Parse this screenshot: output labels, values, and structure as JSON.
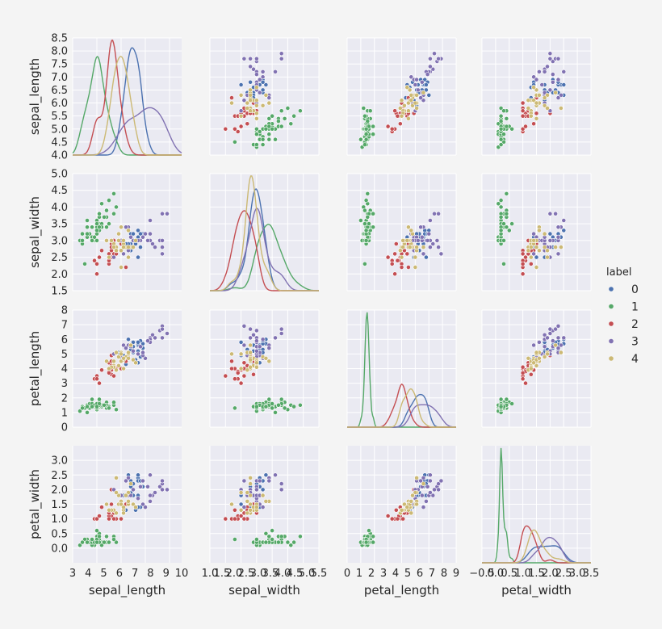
{
  "chart_data": {
    "type": "scatter",
    "variables": [
      "sepal_length",
      "sepal_width",
      "petal_length",
      "petal_width"
    ],
    "axis_ranges": {
      "sepal_length": [
        4.0,
        8.5
      ],
      "sepal_width": [
        1.5,
        5.0
      ],
      "petal_length": [
        0,
        8
      ],
      "petal_width": [
        -0.5,
        3.5
      ]
    },
    "row_ticks": {
      "sepal_length": [
        "4.0",
        "4.5",
        "5.0",
        "5.5",
        "6.0",
        "6.5",
        "7.0",
        "7.5",
        "8.0",
        "8.5"
      ],
      "sepal_width": [
        "1.5",
        "2.0",
        "2.5",
        "3.0",
        "3.5",
        "4.0",
        "4.5",
        "5.0"
      ],
      "petal_length": [
        "0",
        "1",
        "2",
        "3",
        "4",
        "5",
        "6",
        "7",
        "8"
      ],
      "petal_width": [
        "0.0",
        "0.5",
        "1.0",
        "1.5",
        "2.0",
        "2.5",
        "3.0"
      ]
    },
    "x_axes": [
      {
        "label": "sepal_length",
        "range": [
          3,
          10
        ],
        "ticks": [
          "3",
          "4",
          "5",
          "6",
          "7",
          "8",
          "9",
          "10"
        ]
      },
      {
        "label": "sepal_width",
        "range": [
          1.0,
          5.5
        ],
        "ticks": [
          "1.0",
          "1.5",
          "2.0",
          "2.5",
          "3.0",
          "3.5",
          "4.0",
          "4.5",
          "5.0",
          "5.5"
        ]
      },
      {
        "label": "petal_length",
        "range": [
          0,
          9
        ],
        "ticks": [
          "0",
          "1",
          "2",
          "3",
          "4",
          "5",
          "6",
          "7",
          "8",
          "9"
        ]
      },
      {
        "label": "petal_width",
        "range": [
          -0.5,
          3.5
        ],
        "ticks": [
          "−0.5",
          "0.0",
          "0.5",
          "1.0",
          "1.5",
          "2.0",
          "2.5",
          "3.0",
          "3.5"
        ]
      }
    ],
    "legend": {
      "title": "label",
      "entries": [
        "0",
        "1",
        "2",
        "3",
        "4"
      ],
      "position": "right"
    },
    "diagonal": "kde",
    "grid": true,
    "colors": [
      "#4c72b0",
      "#55a868",
      "#c44e52",
      "#8172b2",
      "#ccb974"
    ],
    "series": [
      {
        "name": "0",
        "points": [
          [
            6.1,
            2.8,
            4.7,
            1.2
          ],
          [
            6.3,
            2.5,
            4.9,
            1.5
          ],
          [
            6.4,
            2.9,
            5.2,
            1.8
          ],
          [
            6.5,
            3.0,
            5.5,
            1.8
          ],
          [
            6.7,
            3.1,
            5.6,
            2.4
          ],
          [
            6.9,
            3.1,
            5.4,
            2.1
          ],
          [
            6.3,
            2.8,
            5.1,
            1.5
          ],
          [
            6.4,
            3.2,
            5.3,
            2.3
          ],
          [
            6.2,
            3.4,
            5.4,
            2.3
          ],
          [
            6.7,
            3.0,
            5.2,
            2.3
          ],
          [
            6.5,
            2.8,
            4.6,
            1.5
          ],
          [
            6.6,
            2.9,
            4.6,
            1.3
          ],
          [
            6.8,
            2.8,
            4.8,
            1.4
          ],
          [
            6.7,
            3.3,
            5.7,
            2.5
          ],
          [
            6.0,
            2.2,
            5.0,
            1.5
          ],
          [
            6.3,
            3.3,
            6.0,
            2.5
          ],
          [
            6.4,
            2.7,
            5.3,
            1.9
          ],
          [
            6.1,
            3.0,
            4.9,
            1.8
          ],
          [
            6.5,
            3.2,
            5.1,
            2.0
          ],
          [
            7.1,
            3.0,
            5.9,
            2.1
          ],
          [
            6.9,
            3.2,
            5.7,
            2.3
          ],
          [
            6.8,
            3.2,
            5.9,
            2.3
          ],
          [
            6.7,
            3.1,
            4.4,
            1.4
          ],
          [
            6.6,
            3.0,
            4.4,
            1.4
          ],
          [
            6.3,
            2.9,
            5.6,
            1.8
          ],
          [
            5.9,
            3.0,
            5.1,
            1.8
          ],
          [
            6.2,
            2.9,
            4.3,
            1.3
          ],
          [
            6.4,
            2.8,
            5.6,
            2.1
          ],
          [
            6.7,
            2.5,
            5.8,
            1.8
          ],
          [
            6.5,
            3.0,
            5.8,
            2.2
          ]
        ]
      },
      {
        "name": "1",
        "points": [
          [
            5.1,
            3.5,
            1.4,
            0.2
          ],
          [
            4.9,
            3.0,
            1.4,
            0.2
          ],
          [
            4.7,
            3.2,
            1.3,
            0.2
          ],
          [
            4.6,
            3.1,
            1.5,
            0.2
          ],
          [
            5.0,
            3.6,
            1.4,
            0.2
          ],
          [
            5.4,
            3.9,
            1.7,
            0.4
          ],
          [
            4.6,
            3.4,
            1.4,
            0.3
          ],
          [
            5.0,
            3.4,
            1.5,
            0.2
          ],
          [
            4.4,
            2.9,
            1.4,
            0.2
          ],
          [
            4.9,
            3.1,
            1.5,
            0.1
          ],
          [
            5.4,
            3.7,
            1.5,
            0.2
          ],
          [
            4.8,
            3.4,
            1.6,
            0.2
          ],
          [
            4.8,
            3.0,
            1.4,
            0.1
          ],
          [
            4.3,
            3.0,
            1.1,
            0.1
          ],
          [
            5.8,
            4.0,
            1.2,
            0.2
          ],
          [
            5.7,
            4.4,
            1.5,
            0.4
          ],
          [
            5.4,
            3.9,
            1.3,
            0.4
          ],
          [
            5.1,
            3.5,
            1.4,
            0.3
          ],
          [
            5.7,
            3.8,
            1.7,
            0.3
          ],
          [
            5.1,
            3.8,
            1.5,
            0.3
          ],
          [
            5.4,
            3.4,
            1.7,
            0.2
          ],
          [
            5.1,
            3.7,
            1.5,
            0.4
          ],
          [
            4.6,
            3.6,
            1.0,
            0.2
          ],
          [
            5.1,
            3.3,
            1.7,
            0.5
          ],
          [
            4.8,
            3.4,
            1.9,
            0.2
          ],
          [
            5.0,
            3.0,
            1.6,
            0.2
          ],
          [
            5.0,
            3.4,
            1.6,
            0.4
          ],
          [
            5.2,
            3.5,
            1.5,
            0.2
          ],
          [
            5.2,
            3.4,
            1.4,
            0.2
          ],
          [
            4.7,
            3.2,
            1.6,
            0.2
          ],
          [
            4.8,
            3.1,
            1.6,
            0.2
          ],
          [
            5.4,
            3.4,
            1.5,
            0.4
          ],
          [
            5.2,
            4.1,
            1.5,
            0.1
          ],
          [
            5.5,
            4.2,
            1.4,
            0.2
          ],
          [
            4.9,
            3.1,
            1.5,
            0.2
          ],
          [
            5.0,
            3.2,
            1.2,
            0.2
          ],
          [
            5.5,
            3.5,
            1.3,
            0.2
          ],
          [
            4.4,
            3.0,
            1.3,
            0.2
          ],
          [
            5.1,
            3.4,
            1.5,
            0.2
          ],
          [
            5.0,
            3.5,
            1.3,
            0.3
          ],
          [
            4.5,
            2.3,
            1.3,
            0.3
          ],
          [
            4.4,
            3.2,
            1.3,
            0.2
          ],
          [
            5.0,
            3.5,
            1.6,
            0.6
          ],
          [
            5.1,
            3.8,
            1.9,
            0.4
          ],
          [
            4.8,
            3.0,
            1.4,
            0.3
          ],
          [
            5.1,
            3.8,
            1.6,
            0.2
          ],
          [
            4.6,
            3.2,
            1.4,
            0.2
          ],
          [
            5.3,
            3.7,
            1.5,
            0.2
          ],
          [
            5.0,
            3.3,
            1.4,
            0.2
          ]
        ]
      },
      {
        "name": "2",
        "points": [
          [
            5.5,
            2.3,
            4.0,
            1.3
          ],
          [
            4.9,
            2.4,
            3.3,
            1.0
          ],
          [
            5.2,
            2.7,
            3.9,
            1.4
          ],
          [
            5.0,
            2.0,
            3.5,
            1.0
          ],
          [
            5.9,
            3.0,
            4.2,
            1.5
          ],
          [
            6.0,
            2.2,
            4.0,
            1.0
          ],
          [
            5.6,
            2.9,
            3.6,
            1.3
          ],
          [
            5.8,
            2.7,
            4.1,
            1.0
          ],
          [
            5.6,
            2.5,
            3.9,
            1.1
          ],
          [
            5.7,
            2.6,
            3.5,
            1.0
          ],
          [
            5.5,
            2.4,
            3.8,
            1.1
          ],
          [
            5.5,
            2.4,
            3.7,
            1.0
          ],
          [
            5.8,
            2.7,
            3.9,
            1.2
          ],
          [
            5.5,
            2.5,
            4.0,
            1.3
          ],
          [
            5.5,
            2.6,
            4.4,
            1.2
          ],
          [
            5.8,
            2.6,
            4.0,
            1.2
          ],
          [
            5.0,
            2.3,
            3.3,
            1.0
          ],
          [
            5.6,
            2.7,
            4.2,
            1.3
          ],
          [
            5.7,
            3.0,
            4.2,
            1.2
          ],
          [
            5.1,
            2.5,
            3.0,
            1.1
          ],
          [
            5.7,
            2.8,
            4.1,
            1.3
          ],
          [
            6.0,
            2.9,
            4.5,
            1.5
          ],
          [
            5.6,
            3.0,
            4.5,
            1.5
          ],
          [
            6.2,
            2.2,
            4.5,
            1.5
          ],
          [
            5.6,
            2.8,
            4.9,
            2.0
          ]
        ]
      },
      {
        "name": "3",
        "points": [
          [
            7.0,
            3.2,
            4.7,
            1.4
          ],
          [
            6.9,
            3.1,
            4.9,
            1.5
          ],
          [
            7.6,
            3.0,
            6.6,
            2.1
          ],
          [
            7.3,
            2.9,
            6.3,
            1.8
          ],
          [
            7.2,
            3.6,
            6.1,
            2.5
          ],
          [
            7.7,
            3.8,
            6.7,
            2.2
          ],
          [
            7.7,
            2.6,
            6.9,
            2.3
          ],
          [
            7.7,
            2.8,
            6.7,
            2.0
          ],
          [
            7.2,
            3.2,
            6.0,
            1.8
          ],
          [
            7.2,
            3.0,
            5.8,
            1.6
          ],
          [
            7.4,
            2.8,
            6.1,
            1.9
          ],
          [
            7.9,
            3.8,
            6.4,
            2.0
          ],
          [
            7.7,
            3.0,
            6.1,
            2.3
          ],
          [
            6.8,
            3.0,
            5.5,
            2.1
          ],
          [
            7.1,
            3.0,
            5.9,
            2.1
          ],
          [
            6.3,
            3.4,
            5.6,
            2.4
          ],
          [
            6.9,
            3.1,
            5.1,
            2.3
          ],
          [
            6.7,
            3.0,
            5.0,
            1.7
          ],
          [
            6.1,
            2.6,
            5.6,
            1.4
          ],
          [
            6.5,
            3.0,
            5.2,
            2.0
          ],
          [
            6.2,
            3.4,
            5.4,
            2.3
          ],
          [
            5.7,
            2.5,
            5.0,
            2.0
          ],
          [
            6.3,
            2.7,
            4.9,
            1.8
          ],
          [
            6.0,
            3.0,
            4.8,
            1.8
          ],
          [
            6.4,
            3.1,
            5.5,
            1.8
          ]
        ]
      },
      {
        "name": "4",
        "points": [
          [
            5.7,
            2.9,
            4.2,
            1.3
          ],
          [
            5.7,
            2.8,
            4.5,
            1.3
          ],
          [
            6.1,
            2.9,
            4.7,
            1.4
          ],
          [
            5.9,
            3.2,
            4.8,
            1.8
          ],
          [
            6.1,
            2.8,
            4.0,
            1.3
          ],
          [
            6.1,
            3.0,
            4.6,
            1.4
          ],
          [
            5.8,
            2.7,
            5.1,
            1.9
          ],
          [
            6.3,
            2.5,
            5.0,
            1.9
          ],
          [
            6.0,
            3.4,
            4.5,
            1.6
          ],
          [
            6.0,
            2.7,
            5.1,
            1.6
          ],
          [
            5.4,
            3.0,
            4.5,
            1.5
          ],
          [
            6.2,
            2.8,
            4.8,
            1.8
          ],
          [
            5.8,
            2.8,
            5.1,
            2.4
          ],
          [
            6.4,
            2.8,
            5.6,
            2.2
          ],
          [
            5.9,
            3.0,
            4.2,
            1.5
          ],
          [
            6.1,
            2.8,
            4.7,
            1.2
          ],
          [
            5.7,
            2.8,
            4.1,
            1.3
          ],
          [
            6.0,
            2.2,
            5.0,
            1.5
          ],
          [
            5.8,
            2.7,
            3.9,
            1.2
          ],
          [
            6.3,
            2.8,
            5.1,
            1.5
          ],
          [
            5.6,
            3.0,
            4.1,
            1.3
          ],
          [
            5.5,
            2.5,
            4.0,
            1.3
          ],
          [
            6.5,
            2.8,
            4.6,
            1.5
          ],
          [
            6.6,
            3.0,
            4.4,
            1.4
          ],
          [
            6.3,
            3.3,
            4.7,
            1.6
          ]
        ]
      }
    ]
  }
}
